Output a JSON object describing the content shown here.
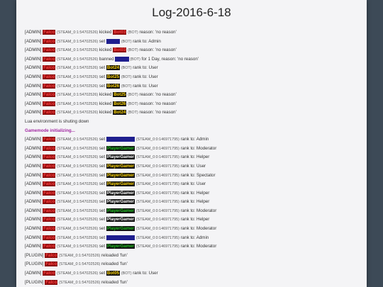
{
  "title": "Log-2016-6-18",
  "colors": {
    "background": "#3d4a57",
    "panel": "#f4f4f6",
    "admin_name_bg": "#8b0d0d",
    "admin_name_fg": "#ff4040",
    "bot_fg": "#ffd400",
    "player_green": "#1ec41e",
    "gamemode_purple": "#a229a2"
  },
  "lines": [
    {
      "type": "action",
      "prefix": "[ADMIN]",
      "actor": "Falco",
      "actor_id": "(STEAM_0:1:54702526)",
      "verb": "kicked",
      "target": "Bot03",
      "target_style": "red",
      "target_id": "(BOT)",
      "rest": "reason: 'no reason'"
    },
    {
      "type": "action",
      "prefix": "[ADMIN]",
      "actor": "Falco",
      "actor_id": "(STEAM_0:1:54702526)",
      "verb": "set",
      "target": "Bot16",
      "target_style": "navy",
      "target_id": "(BOT)",
      "rest": "rank to: Admin"
    },
    {
      "type": "action",
      "prefix": "[ADMIN]",
      "actor": "Falco",
      "actor_id": "(STEAM_0:1:54702526)",
      "verb": "kicked",
      "target": "Bot03",
      "target_style": "red",
      "target_id": "(BOT)",
      "rest": "reason: 'no reason'"
    },
    {
      "type": "action",
      "prefix": "[ADMIN]",
      "actor": "Falco",
      "actor_id": "(STEAM_0:1:54702526)",
      "verb": "banned",
      "target": "Bot16",
      "target_style": "navy",
      "target_id": "(BOT)",
      "rest": "for 1 Day, reason: 'no reason'"
    },
    {
      "type": "action",
      "prefix": "[ADMIN]",
      "actor": "Falco",
      "actor_id": "(STEAM_0:1:54702526)",
      "verb": "set",
      "target": "Bot24",
      "target_style": "yellow",
      "target_id": "(BOT)",
      "rest": "rank to: User"
    },
    {
      "type": "action",
      "prefix": "[ADMIN]",
      "actor": "Falco",
      "actor_id": "(STEAM_0:1:54702526)",
      "verb": "set",
      "target": "Bot25",
      "target_style": "yellow",
      "target_id": "(BOT)",
      "rest": "rank to: User"
    },
    {
      "type": "action",
      "prefix": "[ADMIN]",
      "actor": "Falco",
      "actor_id": "(STEAM_0:1:54702526)",
      "verb": "set",
      "target": "Bot26",
      "target_style": "yellow",
      "target_id": "(BOT)",
      "rest": "rank to: User"
    },
    {
      "type": "action",
      "prefix": "[ADMIN]",
      "actor": "Falco",
      "actor_id": "(STEAM_0:1:54702526)",
      "verb": "kicked",
      "target": "Bot25",
      "target_style": "yellow",
      "target_id": "(BOT)",
      "rest": "reason: 'no reason'"
    },
    {
      "type": "action",
      "prefix": "[ADMIN]",
      "actor": "Falco",
      "actor_id": "(STEAM_0:1:54702526)",
      "verb": "kicked",
      "target": "Bot26",
      "target_style": "yellow",
      "target_id": "(BOT)",
      "rest": "reason: 'no reason'"
    },
    {
      "type": "action",
      "prefix": "[ADMIN]",
      "actor": "Falco",
      "actor_id": "(STEAM_0:1:54702526)",
      "verb": "kicked",
      "target": "Bot24",
      "target_style": "yellow",
      "target_id": "(BOT)",
      "rest": "reason: 'no reason'"
    },
    {
      "type": "text",
      "text": "Lua environment is shuting down"
    },
    {
      "type": "init",
      "text": "Gamemode initializing..."
    },
    {
      "type": "action",
      "prefix": "[ADMIN]",
      "actor": "Falco",
      "actor_id": "(STEAM_0:1:54702526)",
      "verb": "set",
      "target": "PlayerGamer",
      "target_style": "navy",
      "target_id": "(STEAM_0:0:146971795)",
      "rest": "rank to: Admin"
    },
    {
      "type": "action",
      "prefix": "[ADMIN]",
      "actor": "Falco",
      "actor_id": "(STEAM_0:1:54702526)",
      "verb": "set",
      "target": "PlayerGamer",
      "target_style": "green",
      "target_id": "(STEAM_0:0:146971795)",
      "rest": "rank to: Moderator"
    },
    {
      "type": "action",
      "prefix": "[ADMIN]",
      "actor": "Falco",
      "actor_id": "(STEAM_0:1:54702526)",
      "verb": "set",
      "target": "PlayerGamer",
      "target_style": "white",
      "target_id": "(STEAM_0:0:146971795)",
      "rest": "rank to: Helper"
    },
    {
      "type": "action",
      "prefix": "[ADMIN]",
      "actor": "Falco",
      "actor_id": "(STEAM_0:1:54702526)",
      "verb": "set",
      "target": "PlayerGamer",
      "target_style": "yellow",
      "target_id": "(STEAM_0:0:146971795)",
      "rest": "rank to: User"
    },
    {
      "type": "action",
      "prefix": "[ADMIN]",
      "actor": "Falco",
      "actor_id": "(STEAM_0:1:54702526)",
      "verb": "set",
      "target": "PlayerGamer",
      "target_style": "yellow",
      "target_id": "(STEAM_0:0:146971795)",
      "rest": "rank to: Spectator"
    },
    {
      "type": "action",
      "prefix": "[ADMIN]",
      "actor": "Falco",
      "actor_id": "(STEAM_0:1:54702526)",
      "verb": "set",
      "target": "PlayerGamer",
      "target_style": "yellow",
      "target_id": "(STEAM_0:0:146971795)",
      "rest": "rank to: User"
    },
    {
      "type": "action",
      "prefix": "[ADMIN]",
      "actor": "Falco",
      "actor_id": "(STEAM_0:1:54702526)",
      "verb": "set",
      "target": "PlayerGamer",
      "target_style": "white",
      "target_id": "(STEAM_0:0:146971795)",
      "rest": "rank to: Helper"
    },
    {
      "type": "action",
      "prefix": "[ADMIN]",
      "actor": "Falco",
      "actor_id": "(STEAM_0:1:54702526)",
      "verb": "set",
      "target": "PlayerGamer",
      "target_style": "white",
      "target_id": "(STEAM_0:0:146971795)",
      "rest": "rank to: Helper"
    },
    {
      "type": "action",
      "prefix": "[ADMIN]",
      "actor": "Falco",
      "actor_id": "(STEAM_0:1:54702526)",
      "verb": "set",
      "target": "PlayerGamer",
      "target_style": "green",
      "target_id": "(STEAM_0:0:146971795)",
      "rest": "rank to: Moderator"
    },
    {
      "type": "action",
      "prefix": "[ADMIN]",
      "actor": "Falco",
      "actor_id": "(STEAM_0:1:54702526)",
      "verb": "set",
      "target": "PlayerGamer",
      "target_style": "white",
      "target_id": "(STEAM_0:0:146971795)",
      "rest": "rank to: Helper"
    },
    {
      "type": "action",
      "prefix": "[ADMIN]",
      "actor": "Falco",
      "actor_id": "(STEAM_0:1:54702526)",
      "verb": "set",
      "target": "PlayerGamer",
      "target_style": "green",
      "target_id": "(STEAM_0:0:146971795)",
      "rest": "rank to: Moderator"
    },
    {
      "type": "action",
      "prefix": "[ADMIN]",
      "actor": "Falco",
      "actor_id": "(STEAM_0:1:54702526)",
      "verb": "set",
      "target": "PlayerGamer",
      "target_style": "navy",
      "target_id": "(STEAM_0:0:146971795)",
      "rest": "rank to: Admin"
    },
    {
      "type": "action",
      "prefix": "[ADMIN]",
      "actor": "Falco",
      "actor_id": "(STEAM_0:1:54702526)",
      "verb": "set",
      "target": "PlayerGamer",
      "target_style": "green",
      "target_id": "(STEAM_0:0:146971795)",
      "rest": "rank to: Moderator"
    },
    {
      "type": "plugin",
      "prefix": "[PLUGIN]",
      "actor": "Falco",
      "actor_id": "(STEAM_0:1:54702526)",
      "rest": "reloaded 'fun'"
    },
    {
      "type": "plugin",
      "prefix": "[PLUGIN]",
      "actor": "Falco",
      "actor_id": "(STEAM_0:1:54702526)",
      "rest": "reloaded 'fun'"
    },
    {
      "type": "action",
      "prefix": "[ADMIN]",
      "actor": "Falco",
      "actor_id": "(STEAM_0:1:54702526)",
      "verb": "set",
      "target": "Bot05",
      "target_style": "yellow",
      "target_id": "(BOT)",
      "rest": "rank to: User"
    },
    {
      "type": "plugin",
      "prefix": "[PLUGIN]",
      "actor": "Falco",
      "actor_id": "(STEAM_0:1:54702526)",
      "rest": "reloaded 'fun'"
    }
  ]
}
